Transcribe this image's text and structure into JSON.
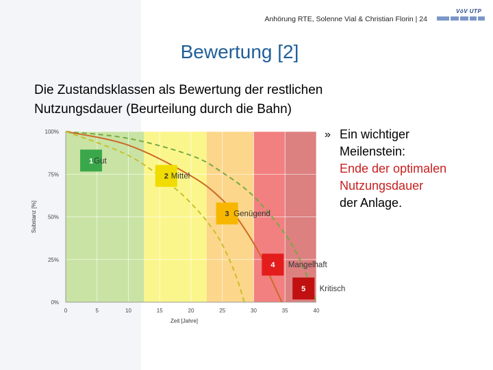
{
  "header": {
    "source_line": "Anhörung RTE, Solenne Vial & Christian Florin | 24",
    "logo_text": "VöV UTP"
  },
  "slide": {
    "title": "Bewertung [2]",
    "subtitle_line1": "Die Zustandsklassen als Bewertung der restlichen",
    "subtitle_line2": "Nutzungsdauer (Beurteilung durch die Bahn)"
  },
  "bullet": {
    "mark": "»",
    "line1": "Ein wichtiger",
    "line2": "Meilenstein:",
    "line3": "Ende der optimalen",
    "line4": "Nutzungsdauer",
    "line5": "der Anlage."
  },
  "colors": {
    "title": "#1f5f9a",
    "highlight": "#c81e1e"
  },
  "chart_data": {
    "type": "line",
    "xlabel": "Zeit [Jahre]",
    "ylabel": "Substanz [%]",
    "xlim": [
      0,
      40
    ],
    "ylim": [
      0,
      100
    ],
    "x_ticks": [
      "0",
      "5",
      "10",
      "15",
      "20",
      "25",
      "30",
      "35",
      "40"
    ],
    "y_ticks": [
      "0%",
      "25%",
      "50%",
      "75%",
      "100%"
    ],
    "grid": true,
    "zones": [
      {
        "class": "1",
        "label": "Gut",
        "x_start": 0,
        "x_end": 12.5,
        "color": "#c9e3a4",
        "badge_color": "#3aa84a",
        "badge_x": 2.3,
        "badge_y": 83,
        "label_x": 4.5
      },
      {
        "class": "2",
        "label": "Mittel",
        "x_start": 12.5,
        "x_end": 22.5,
        "color": "#fbf68c",
        "badge_color": "#f0dc00",
        "badge_x": 14.3,
        "badge_y": 74,
        "label_x": 16.8
      },
      {
        "class": "3",
        "label": "Genügend",
        "x_start": 22.5,
        "x_end": 30,
        "color": "#fcd68a",
        "badge_color": "#f7b700",
        "badge_x": 24,
        "badge_y": 52,
        "label_x": 26.8
      },
      {
        "class": "4",
        "label": "Mangelhaft",
        "x_start": 30,
        "x_end": 35,
        "color": "#f28080",
        "badge_color": "#e31c1c",
        "badge_x": 31.3,
        "badge_y": 22,
        "label_x": 35.5
      },
      {
        "class": "5",
        "label": "Kritisch",
        "x_start": 35,
        "x_end": 40,
        "color": "#dc8080",
        "badge_color": "#c01010",
        "badge_x": 36.2,
        "badge_y": 8,
        "label_x": 40.5
      }
    ],
    "series": [
      {
        "style": "dashed",
        "color": "#73ab40",
        "x": [
          0,
          10,
          20,
          25,
          30,
          35,
          38,
          40
        ],
        "y": [
          100,
          96,
          86,
          76,
          62,
          40,
          20,
          0
        ]
      },
      {
        "style": "solid",
        "color": "#cc6a28",
        "x": [
          0,
          10,
          20,
          25,
          28,
          31,
          33,
          34.5
        ],
        "y": [
          100,
          92,
          74,
          60,
          46,
          28,
          12,
          0
        ]
      },
      {
        "style": "dashed",
        "color": "#c7c02b",
        "x": [
          0,
          10,
          17,
          21,
          24,
          26,
          27.5,
          28.5
        ],
        "y": [
          100,
          86,
          68,
          54,
          40,
          26,
          12,
          0
        ]
      }
    ]
  }
}
